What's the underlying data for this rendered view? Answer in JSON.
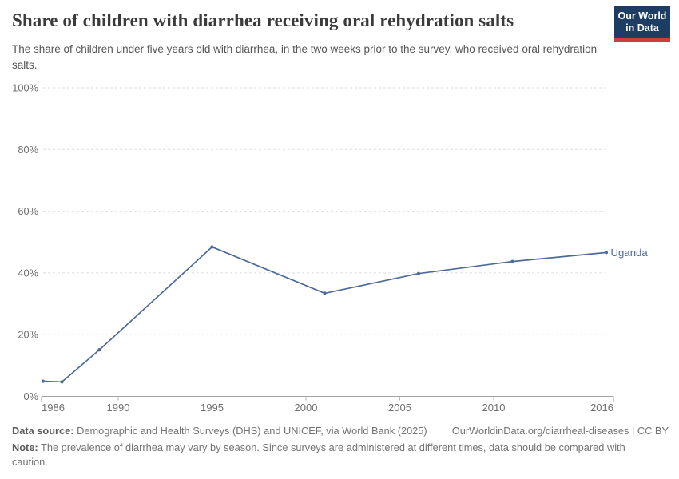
{
  "header": {
    "title": "Share of children with diarrhea receiving oral rehydration salts",
    "subtitle": "The share of children under five years old with diarrhea, in the two weeks prior to the survey, who received oral rehydration salts.",
    "logo": {
      "line1": "Our World",
      "line2": "in Data",
      "bg_color": "#1d3d63",
      "stripe_color": "#cf3b44"
    }
  },
  "chart_data": {
    "type": "line",
    "title": "Share of children with diarrhea receiving oral rehydration salts",
    "xlabel": "",
    "ylabel": "",
    "xlim": [
      1986,
      2016.5
    ],
    "ylim": [
      0,
      100
    ],
    "grid": "horizontal-dashed",
    "x_ticks": [
      1986,
      1990,
      1995,
      2000,
      2005,
      2010,
      2016
    ],
    "y_tick_values": [
      0,
      20,
      40,
      60,
      80,
      100
    ],
    "y_tick_labels": [
      "0%",
      "20%",
      "40%",
      "60%",
      "80%",
      "100%"
    ],
    "series": [
      {
        "name": "Uganda",
        "color": "#4c6a9c",
        "x": [
          1986,
          1987,
          1989,
          1995,
          2001,
          2006,
          2011,
          2016
        ],
        "y": [
          4.9,
          4.7,
          15.1,
          48.4,
          33.4,
          39.8,
          43.7,
          46.6
        ],
        "end_label": "Uganda"
      }
    ],
    "legend_position": "end-of-line"
  },
  "footer": {
    "source_label": "Data source:",
    "source_text": " Demographic and Health Surveys (DHS) and UNICEF, via World Bank (2025)",
    "attribution": "OurWorldinData.org/diarrheal-diseases | CC BY",
    "note_label": "Note:",
    "note_text": " The prevalence of diarrhea may vary by season. Since surveys are administered at different times, data should be compared with caution."
  }
}
